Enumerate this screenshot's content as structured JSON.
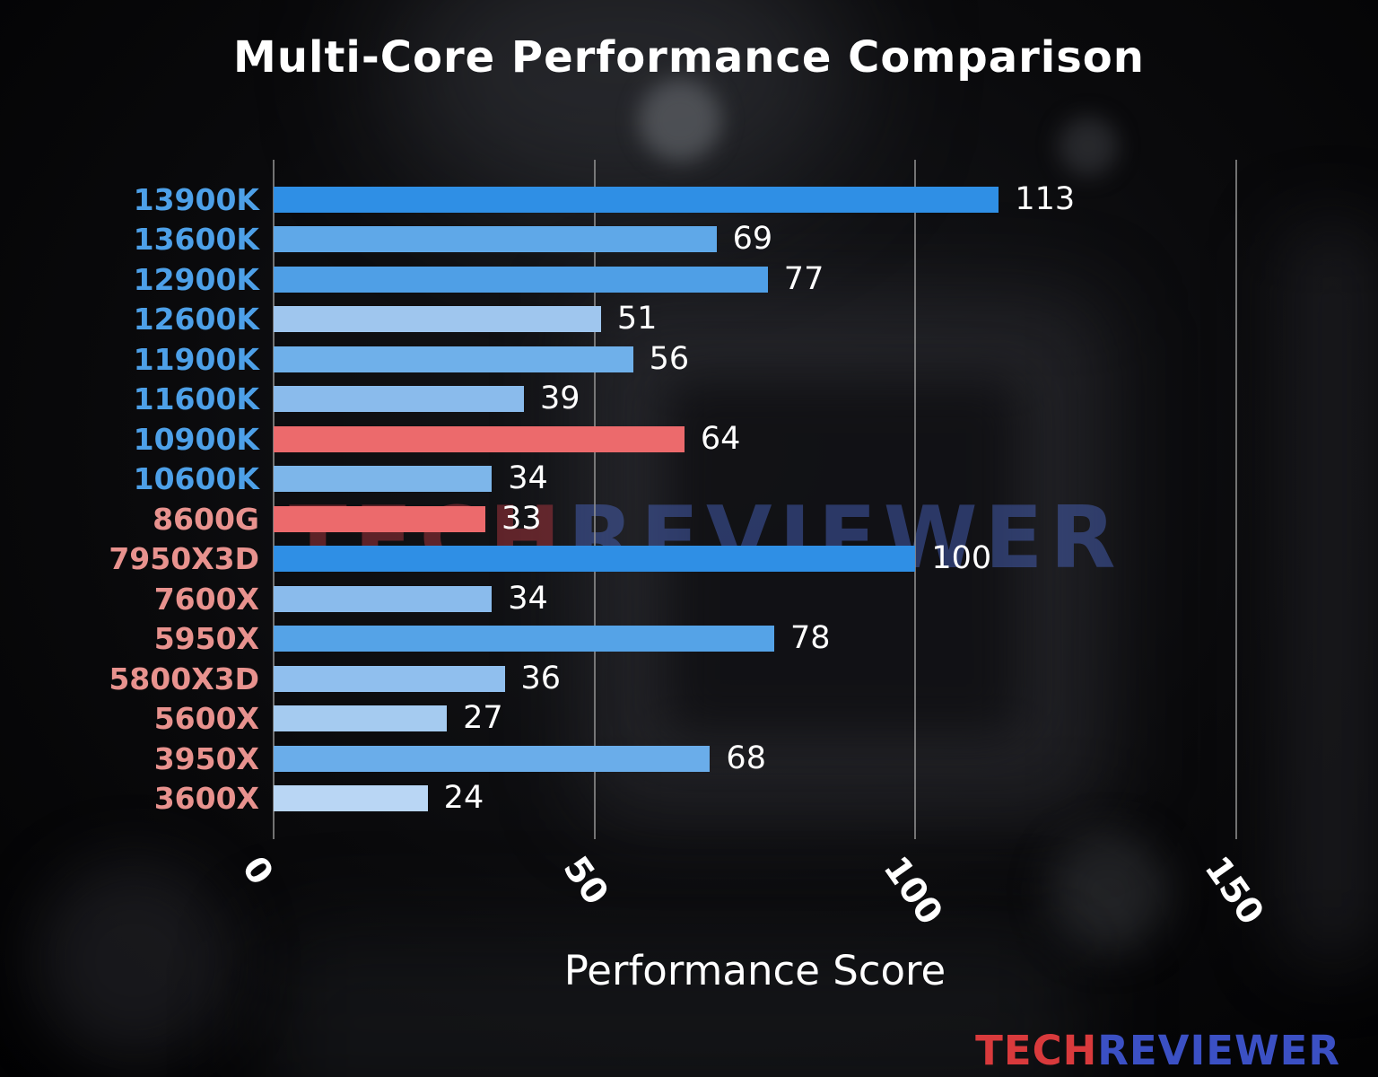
{
  "title": "Multi-Core Performance Comparison",
  "watermark": {
    "tech": "TECH",
    "reviewer": "REVIEWER"
  },
  "logo": {
    "tech": "TECH",
    "reviewer": "REVIEWER"
  },
  "chart_data": {
    "type": "bar",
    "orientation": "horizontal",
    "title": "Multi-Core Performance Comparison",
    "xlabel": "Performance Score",
    "xlim": [
      0,
      150
    ],
    "xticks": [
      0,
      50,
      100,
      150
    ],
    "grid": "vertical gridlines at ticks",
    "legend": "none",
    "categories": [
      "13900K",
      "13600K",
      "12900K",
      "12600K",
      "11900K",
      "11600K",
      "10900K",
      "10600K",
      "8600G",
      "7950X3D",
      "7600X",
      "5950X",
      "5800X3D",
      "5600X",
      "3950X",
      "3600X"
    ],
    "values": [
      113,
      69,
      77,
      51,
      56,
      39,
      64,
      34,
      33,
      100,
      34,
      78,
      36,
      27,
      68,
      24
    ],
    "bar_colors": [
      "#2f8fe5",
      "#5fa8e8",
      "#4f9fe6",
      "#9fc6ee",
      "#6fb0ea",
      "#8abbec",
      "#ec6a6c",
      "#7db6ea",
      "#ec6a6c",
      "#2f8fe5",
      "#8abbec",
      "#55a3e7",
      "#90bfee",
      "#a5cbf0",
      "#6aadea",
      "#b9d6f4"
    ],
    "label_colors": [
      "#4da0e8",
      "#4da0e8",
      "#4da0e8",
      "#4da0e8",
      "#4da0e8",
      "#4da0e8",
      "#4da0e8",
      "#4da0e8",
      "#e8928e",
      "#e8928e",
      "#e8928e",
      "#e8928e",
      "#e8928e",
      "#e8928e",
      "#e8928e",
      "#e8928e"
    ],
    "value_label_color": "#ffffff",
    "background": "dark blurred motherboard photo"
  }
}
